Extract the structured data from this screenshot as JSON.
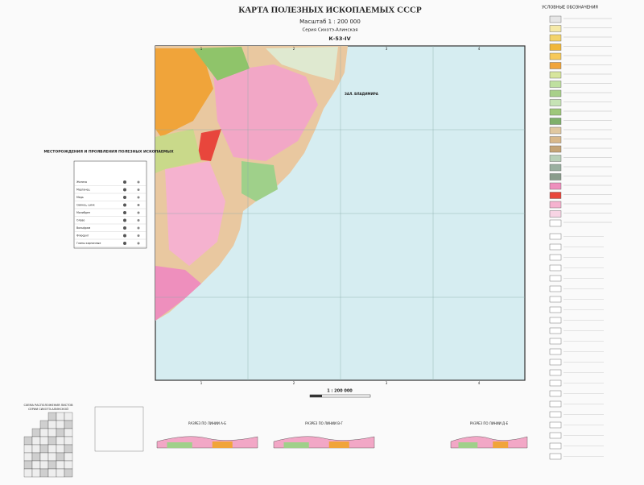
{
  "header": {
    "title": "КАРТА ПОЛЕЗНЫХ ИСКОПАЕМЫХ СССР",
    "scale": "Масштаб 1 : 200 000",
    "series": "Серия Сихотэ-Алинская",
    "sheet": "К-53-IV"
  },
  "map": {
    "bay_label": "ЗАЛ. ВЛАДИМИРА",
    "grid_top": [
      "1",
      "2",
      "3",
      "4"
    ],
    "grid_bottom": [
      "1",
      "2",
      "3",
      "4"
    ],
    "scale_bar": "1 : 200 000"
  },
  "deposits_table": {
    "title": "МЕСТОРОЖДЕНИЯ И ПРОЯВЛЕНИЯ ПОЛЕЗНЫХ ИСКОПАЕМЫХ",
    "rows": [
      "Железо",
      "Марганец",
      "Медь",
      "Свинец, цинк",
      "Молибден",
      "Олово",
      "Вольфрам",
      "Флюорит",
      "Глины кирпичные"
    ]
  },
  "legend": {
    "title": "УСЛОВНЫЕ ОБОЗНАЧЕНИЯ"
  },
  "sections": [
    "РАЗРЕЗ ПО ЛИНИИ А-Б",
    "РАЗРЕЗ ПО ЛИНИИ В-Г",
    "РАЗРЕЗ ПО ЛИНИИ Д-Е"
  ],
  "index_map": {
    "title": [
      "СХЕМА РАСПОЛОЖЕНИЯ ЛИСТОВ",
      "СЕРИИ СИХОТЭ-АЛИНСКОЙ"
    ]
  }
}
